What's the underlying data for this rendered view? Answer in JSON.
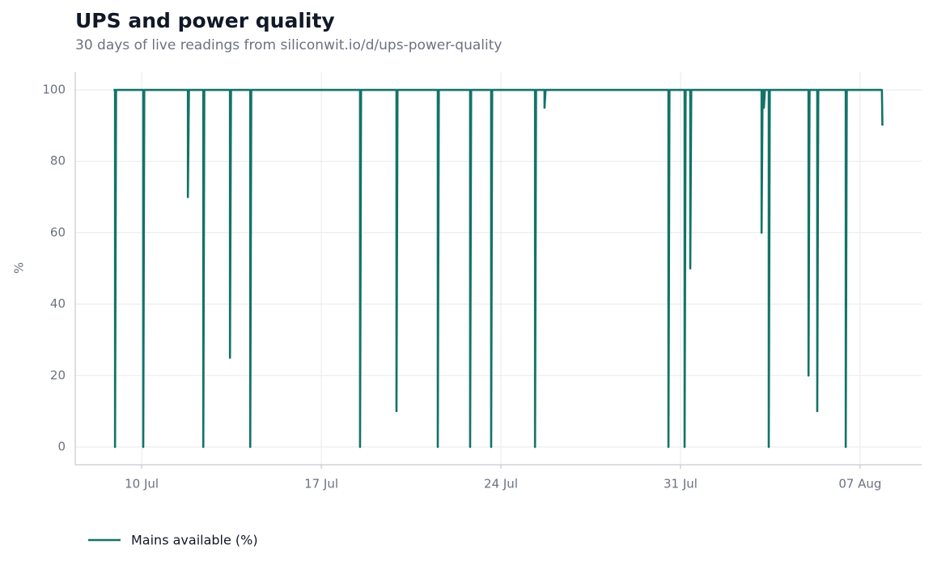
{
  "chart_data": {
    "type": "line",
    "title": "UPS and power quality",
    "subtitle": "30 days of live readings from siliconwit.io/d/ups-power-quality",
    "ylabel": "%",
    "x": [
      8.9,
      8.96,
      8.96,
      9.0,
      10.06,
      10.06,
      10.1,
      11.8,
      11.8,
      11.84,
      12.4,
      12.4,
      12.44,
      13.44,
      13.44,
      13.48,
      14.23,
      14.23,
      14.27,
      18.51,
      18.51,
      18.55,
      19.93,
      19.93,
      19.97,
      21.54,
      21.54,
      21.58,
      22.8,
      22.8,
      22.84,
      23.62,
      23.62,
      23.66,
      25.33,
      25.33,
      25.37,
      25.7,
      25.7,
      25.74,
      30.53,
      30.53,
      30.57,
      31.16,
      31.16,
      31.2,
      31.38,
      31.38,
      31.42,
      34.16,
      34.16,
      34.2,
      34.25,
      34.25,
      34.29,
      34.44,
      34.44,
      34.48,
      35.99,
      35.99,
      36.03,
      36.33,
      36.33,
      36.37,
      37.44,
      37.44,
      37.48,
      38.85,
      38.87
    ],
    "series": [
      {
        "name": "Mains available (%)",
        "color": "#137368",
        "values": [
          100,
          100,
          0,
          100,
          100,
          0,
          100,
          100,
          70,
          100,
          100,
          0,
          100,
          100,
          25,
          100,
          100,
          0,
          100,
          100,
          0,
          100,
          100,
          10,
          100,
          100,
          0,
          100,
          100,
          0,
          100,
          100,
          0,
          100,
          100,
          0,
          100,
          100,
          95,
          100,
          100,
          0,
          100,
          100,
          0,
          100,
          100,
          50,
          100,
          100,
          60,
          100,
          100,
          95,
          100,
          100,
          0,
          100,
          100,
          20,
          100,
          100,
          10,
          100,
          100,
          0,
          100,
          100,
          90
        ]
      }
    ],
    "xlim": [
      7.41,
      40.4
    ],
    "xticks": [
      {
        "value": 10,
        "label": "10 Jul"
      },
      {
        "value": 17,
        "label": "17 Jul"
      },
      {
        "value": 24,
        "label": "24 Jul"
      },
      {
        "value": 31,
        "label": "31 Jul"
      },
      {
        "value": 38,
        "label": "07 Aug"
      }
    ],
    "ylim": [
      -5,
      105
    ],
    "yticks": [
      0,
      20,
      40,
      60,
      80,
      100
    ],
    "grid": true,
    "legend": "bottom-left"
  }
}
